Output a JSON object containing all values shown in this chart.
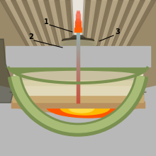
{
  "bg_color": "#b8b8b8",
  "ash_bg": "#9a8a6a",
  "ash_wave_dark": "#7a6a50",
  "ash_wave_light": "#c0b090",
  "ash_col_color": "#d8d0c0",
  "plume_center": "#e8e4dc",
  "volcano_cone_dark": "#504838",
  "volcano_cone_mid": "#706050",
  "volcano_cone_light": "#908070",
  "green_outer": "#7a9050",
  "green_inner": "#a8bc78",
  "green_light": "#c0d090",
  "layer_cream1": "#e8e0c0",
  "layer_cream2": "#d8d0a8",
  "layer_tan": "#c8b888",
  "layer_dark": "#908878",
  "base_brown": "#b89868",
  "base_dark": "#988050",
  "magma_orange": "#ff5500",
  "magma_yellow": "#ffbb00",
  "magma_bright": "#ffdd44",
  "lava_red": "#dd2200",
  "conduit_grey": "#c8c0b8",
  "conduit_top": "#d8d4cc",
  "label_color": "#000000",
  "line_color": "#000000",
  "figsize": [
    2.2,
    2.2
  ],
  "dpi": 100
}
